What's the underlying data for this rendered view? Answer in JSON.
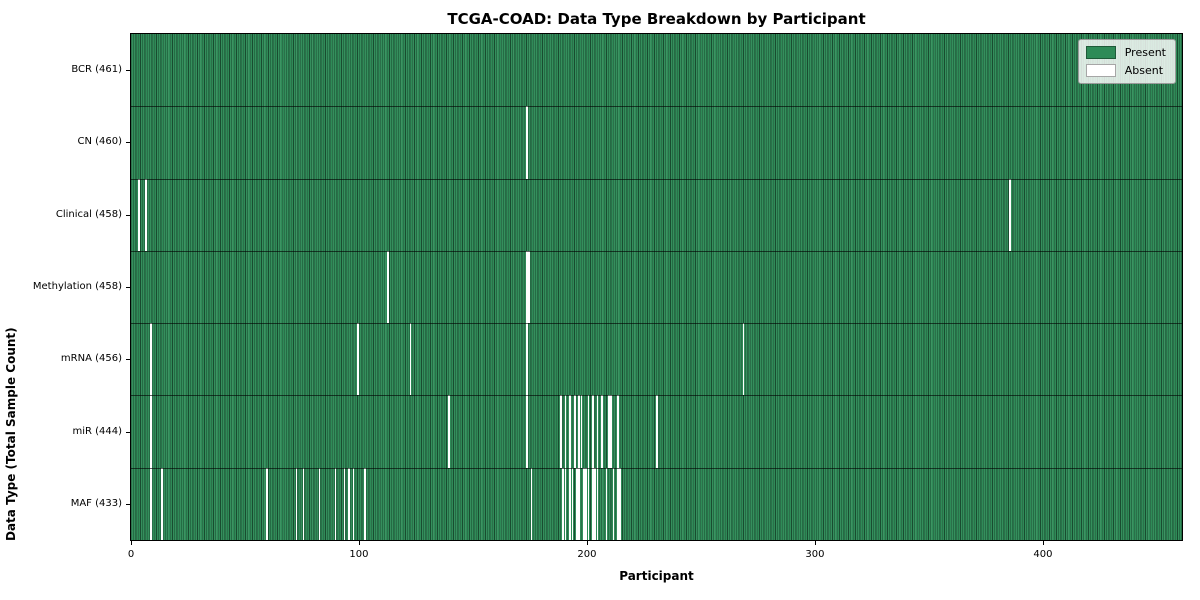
{
  "figure": {
    "title": "TCGA-COAD: Data Type Breakdown by Participant",
    "x_axis_label": "Participant",
    "y_axis_label": "Data Type (Total Sample Count)"
  },
  "legend": {
    "items": [
      {
        "label": "Present",
        "color": "#2e8b57"
      },
      {
        "label": "Absent",
        "color": "#ffffff"
      }
    ]
  },
  "chart_data": {
    "type": "heatmap",
    "title": "TCGA-COAD: Data Type Breakdown by Participant",
    "xlabel": "Participant",
    "ylabel": "Data Type (Total Sample Count)",
    "xlim": [
      0,
      461
    ],
    "x_ticks": [
      0,
      100,
      200,
      300,
      400
    ],
    "n_participants": 461,
    "present_color": "#2e8b57",
    "absent_color": "#ffffff",
    "legend_position": "upper right",
    "rows": [
      {
        "label": "BCR",
        "count": 461,
        "tick_label": "BCR (461)",
        "absent_participants": []
      },
      {
        "label": "CN",
        "count": 460,
        "tick_label": "CN (460)",
        "absent_participants": [
          173
        ]
      },
      {
        "label": "Clinical",
        "count": 458,
        "tick_label": "Clinical (458)",
        "absent_participants": [
          3,
          6,
          385
        ]
      },
      {
        "label": "Methylation",
        "count": 458,
        "tick_label": "Methylation (458)",
        "absent_participants": [
          112,
          173,
          174
        ]
      },
      {
        "label": "mRNA",
        "count": 456,
        "tick_label": "mRNA (456)",
        "absent_participants": [
          8,
          99,
          122,
          173,
          268
        ]
      },
      {
        "label": "miR",
        "count": 444,
        "tick_label": "miR (444)",
        "absent_participants": [
          8,
          139,
          173,
          188,
          190,
          192,
          194,
          196,
          197,
          200,
          202,
          204,
          206,
          209,
          210,
          213,
          230
        ]
      },
      {
        "label": "MAF",
        "count": 433,
        "tick_label": "MAF (433)",
        "absent_participants": [
          8,
          13,
          59,
          72,
          75,
          82,
          89,
          93,
          95,
          97,
          102,
          175,
          189,
          190,
          192,
          193,
          195,
          196,
          198,
          199,
          200,
          202,
          203,
          204,
          208,
          211,
          213,
          214
        ]
      }
    ]
  }
}
